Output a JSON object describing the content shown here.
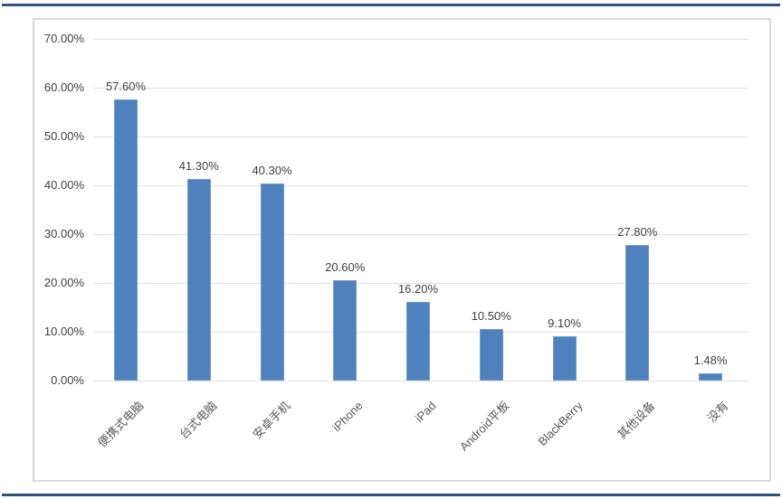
{
  "page": {
    "top_rule_color": "#2e5280",
    "bottom_rule_color": "#2e5280",
    "frame_border_color": "#d9d9d9",
    "background_color": "#ffffff"
  },
  "chart_data": {
    "type": "bar",
    "title": "",
    "xlabel": "",
    "ylabel": "",
    "legend": "none",
    "grid": true,
    "gridline_color": "#e2e2e2",
    "bar_color": "#4f81bd",
    "bar_edge_color": "#6f99c8",
    "axis_text_color": "#404040",
    "category_text_color": "#595959",
    "ylim": [
      0,
      70
    ],
    "ytick_step": 10,
    "ytick_labels": [
      "0.00%",
      "10.00%",
      "20.00%",
      "30.00%",
      "40.00%",
      "50.00%",
      "60.00%",
      "70.00%"
    ],
    "categories": [
      "便携式电脑",
      "台式电脑",
      "安卓手机",
      "iPhone",
      "iPad",
      "Android平板",
      "BlackBerry",
      "其他设备",
      "没有"
    ],
    "values": [
      57.6,
      41.3,
      40.3,
      20.6,
      16.2,
      10.5,
      9.1,
      27.8,
      1.48
    ],
    "data_labels": [
      "57.60%",
      "41.30%",
      "40.30%",
      "20.60%",
      "16.20%",
      "10.50%",
      "9.10%",
      "27.80%",
      "1.48%"
    ]
  }
}
